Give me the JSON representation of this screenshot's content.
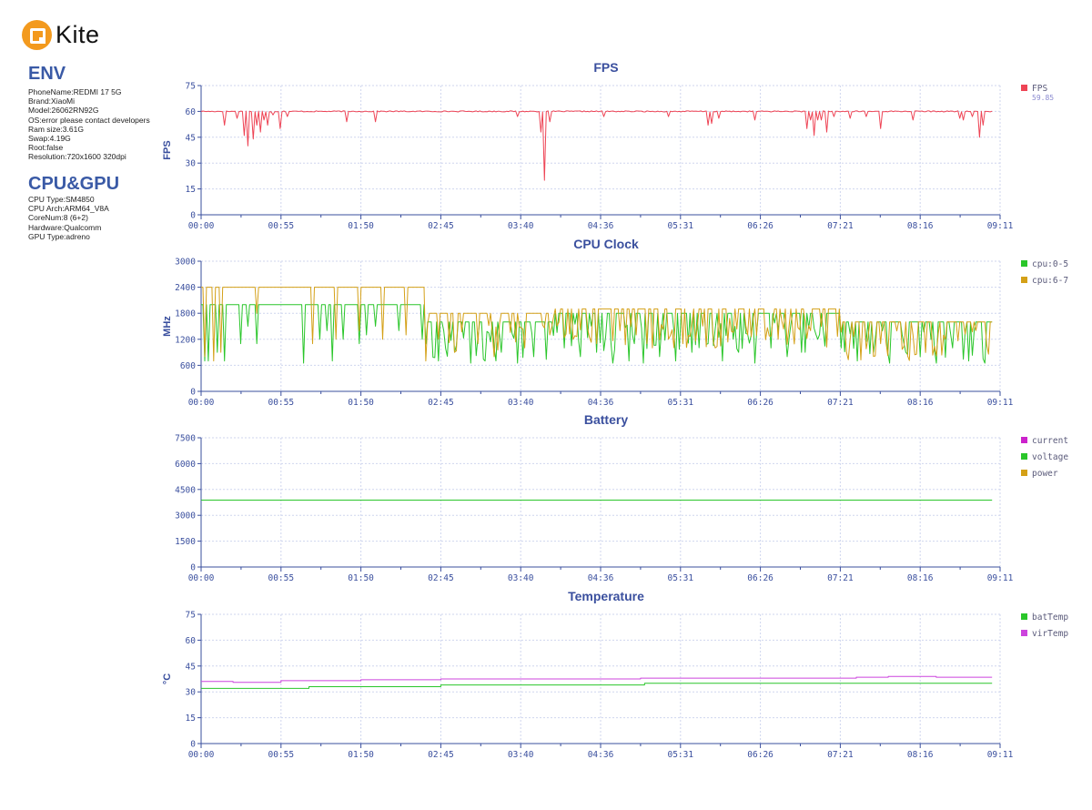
{
  "app": {
    "name": "Kite"
  },
  "env": {
    "title": "ENV",
    "items": [
      "PhoneName:REDMI 17 5G",
      "Brand:XiaoMi",
      "Model:26062RN92G",
      "OS:error please contact developers",
      "Ram size:3.61G",
      "Swap:4.19G",
      "Root:false",
      "Resolution:720x1600 320dpi"
    ]
  },
  "cpugpu": {
    "title": "CPU&GPU",
    "items": [
      "CPU Type:SM4850",
      "CPU Arch:ARM64_V8A",
      "CoreNum:8 (6+2)",
      "Hardware:Qualcomm",
      "GPU Type:adreno"
    ]
  },
  "chart_data": [
    {
      "type": "line",
      "title": "FPS",
      "ylabel": "FPS",
      "ylim": [
        0,
        75
      ],
      "yticks": [
        "0",
        "15",
        "30",
        "45",
        "60",
        "75"
      ],
      "xticks": [
        "00:00",
        "00:55",
        "01:50",
        "02:45",
        "03:40",
        "04:36",
        "05:31",
        "06:26",
        "07:21",
        "08:16",
        "09:11"
      ],
      "grid": true,
      "legend_position": "right",
      "series": [
        {
          "name": "FPS",
          "color": "#ee4455",
          "legend_value": "59.85",
          "base": 60,
          "dips": [
            [
              0.03,
              52
            ],
            [
              0.045,
              56
            ],
            [
              0.055,
              46
            ],
            [
              0.06,
              40
            ],
            [
              0.065,
              44
            ],
            [
              0.07,
              52
            ],
            [
              0.075,
              48
            ],
            [
              0.08,
              55
            ],
            [
              0.085,
              52
            ],
            [
              0.09,
              58
            ],
            [
              0.1,
              50
            ],
            [
              0.11,
              57
            ],
            [
              0.185,
              54
            ],
            [
              0.22,
              54
            ],
            [
              0.4,
              57
            ],
            [
              0.43,
              48
            ],
            [
              0.435,
              20
            ],
            [
              0.44,
              54
            ],
            [
              0.51,
              57
            ],
            [
              0.59,
              57
            ],
            [
              0.655,
              56
            ],
            [
              0.7,
              55
            ],
            [
              0.77,
              57
            ],
            [
              0.8,
              57
            ],
            [
              0.82,
              57
            ],
            [
              0.77,
              56
            ],
            [
              0.785,
              55
            ],
            [
              0.64,
              52
            ],
            [
              0.645,
              53
            ],
            [
              0.77,
              55
            ],
            [
              0.79,
              52
            ],
            [
              0.79,
              48
            ],
            [
              0.82,
              56
            ],
            [
              0.9,
              55
            ],
            [
              0.86,
              50
            ],
            [
              0.84,
              57
            ],
            [
              0.765,
              50
            ],
            [
              0.775,
              46
            ],
            [
              0.78,
              55
            ],
            [
              0.655,
              56
            ],
            [
              0.96,
              56
            ],
            [
              0.964,
              55
            ],
            [
              0.983,
              45
            ],
            [
              0.988,
              52
            ],
            [
              0.975,
              57
            ]
          ]
        }
      ]
    },
    {
      "type": "line",
      "title": "CPU Clock",
      "ylabel": "MHz",
      "ylim": [
        0,
        3000
      ],
      "yticks": [
        "0",
        "600",
        "1200",
        "1800",
        "2400",
        "3000"
      ],
      "xticks": [
        "00:00",
        "00:55",
        "01:50",
        "02:45",
        "03:40",
        "04:36",
        "05:31",
        "06:26",
        "07:21",
        "08:16",
        "09:11"
      ],
      "grid": true,
      "legend_position": "right",
      "series": [
        {
          "name": "cpu:0-5",
          "color": "#2ac62a",
          "segments": [
            [
              0,
              0.04,
              2000
            ],
            [
              0.04,
              0.28,
              2000
            ],
            [
              0.28,
              0.44,
              1600
            ],
            [
              0.44,
              0.8,
              1800
            ],
            [
              0.8,
              0.99,
              1600
            ]
          ],
          "drops": [
            [
              0.005,
              700
            ],
            [
              0.01,
              700
            ],
            [
              0.02,
              900
            ],
            [
              0.03,
              700
            ],
            [
              0.05,
              1100
            ],
            [
              0.06,
              1500
            ],
            [
              0.07,
              1100
            ],
            [
              0.13,
              650
            ],
            [
              0.15,
              1200
            ],
            [
              0.16,
              1400
            ],
            [
              0.165,
              700
            ],
            [
              0.18,
              1200
            ],
            [
              0.2,
              1100
            ],
            [
              0.21,
              1300
            ],
            [
              0.22,
              1500
            ],
            [
              0.25,
              1400
            ],
            [
              0.28,
              1200
            ],
            [
              0.3,
              700
            ],
            [
              0.32,
              900
            ],
            [
              0.34,
              650
            ],
            [
              0.36,
              700
            ],
            [
              0.38,
              900
            ],
            [
              0.4,
              650
            ],
            [
              0.42,
              800
            ],
            [
              0.46,
              1000
            ],
            [
              0.48,
              800
            ],
            [
              0.5,
              900
            ],
            [
              0.52,
              650
            ],
            [
              0.54,
              700
            ],
            [
              0.56,
              650
            ],
            [
              0.58,
              800
            ],
            [
              0.6,
              700
            ],
            [
              0.62,
              900
            ],
            [
              0.64,
              1100
            ],
            [
              0.66,
              700
            ],
            [
              0.68,
              900
            ],
            [
              0.7,
              650
            ],
            [
              0.72,
              1000
            ],
            [
              0.74,
              800
            ],
            [
              0.76,
              900
            ],
            [
              0.78,
              1200
            ],
            [
              0.81,
              1000
            ],
            [
              0.83,
              700
            ],
            [
              0.85,
              900
            ],
            [
              0.87,
              650
            ],
            [
              0.89,
              900
            ],
            [
              0.91,
              800
            ],
            [
              0.93,
              650
            ],
            [
              0.95,
              1000
            ],
            [
              0.97,
              700
            ],
            [
              0.99,
              650
            ]
          ]
        },
        {
          "name": "cpu:6-7",
          "color": "#d4a017",
          "segments": [
            [
              0,
              0.03,
              2400
            ],
            [
              0.03,
              0.28,
              2400
            ],
            [
              0.28,
              0.44,
              1800
            ],
            [
              0.44,
              0.8,
              1900
            ],
            [
              0.8,
              0.99,
              1600
            ]
          ],
          "drops": [
            [
              0.005,
              800
            ],
            [
              0.015,
              700
            ],
            [
              0.025,
              900
            ],
            [
              0.07,
              1800
            ],
            [
              0.14,
              1100
            ],
            [
              0.17,
              1200
            ],
            [
              0.2,
              1400
            ],
            [
              0.23,
              1200
            ],
            [
              0.26,
              1300
            ],
            [
              0.285,
              700
            ],
            [
              0.3,
              1200
            ],
            [
              0.32,
              900
            ],
            [
              0.35,
              1100
            ],
            [
              0.37,
              800
            ],
            [
              0.41,
              1000
            ],
            [
              0.44,
              1300
            ],
            [
              0.47,
              1200
            ],
            [
              0.5,
              1100
            ],
            [
              0.53,
              1400
            ],
            [
              0.55,
              1300
            ],
            [
              0.59,
              1200
            ],
            [
              0.61,
              1100
            ],
            [
              0.65,
              1000
            ],
            [
              0.69,
              1300
            ],
            [
              0.73,
              1200
            ],
            [
              0.77,
              1400
            ],
            [
              0.82,
              1200
            ],
            [
              0.86,
              1100
            ],
            [
              0.9,
              1300
            ],
            [
              0.94,
              1200
            ],
            [
              0.98,
              1400
            ]
          ]
        }
      ]
    },
    {
      "type": "line",
      "title": "Battery",
      "ylabel": "",
      "ylim": [
        0,
        7500
      ],
      "yticks": [
        "0",
        "1500",
        "3000",
        "4500",
        "6000",
        "7500"
      ],
      "xticks": [
        "00:00",
        "00:55",
        "01:50",
        "02:45",
        "03:40",
        "04:36",
        "05:31",
        "06:26",
        "07:21",
        "08:16",
        "09:11"
      ],
      "grid": true,
      "legend_position": "right",
      "series": [
        {
          "name": "current",
          "color": "#cc22cc"
        },
        {
          "name": "voltage",
          "color": "#2ac62a",
          "constant": 3880
        },
        {
          "name": "power",
          "color": "#d4a017"
        }
      ]
    },
    {
      "type": "line",
      "title": "Temperature",
      "ylabel": "°C",
      "ylim": [
        0,
        75
      ],
      "yticks": [
        "0",
        "15",
        "30",
        "45",
        "60",
        "75"
      ],
      "xticks": [
        "00:00",
        "00:55",
        "01:50",
        "02:45",
        "03:40",
        "04:36",
        "05:31",
        "06:26",
        "07:21",
        "08:16",
        "09:11"
      ],
      "grid": true,
      "legend_position": "right",
      "series": [
        {
          "name": "batTemp",
          "color": "#2ac62a",
          "steps": [
            [
              0.0,
              32
            ],
            [
              0.135,
              33
            ],
            [
              0.3,
              34
            ],
            [
              0.555,
              35
            ],
            [
              0.99,
              35
            ]
          ]
        },
        {
          "name": "virTemp",
          "color": "#cc44dd",
          "steps": [
            [
              0.0,
              36
            ],
            [
              0.04,
              35.5
            ],
            [
              0.1,
              36.5
            ],
            [
              0.2,
              37
            ],
            [
              0.3,
              37.5
            ],
            [
              0.45,
              37.5
            ],
            [
              0.55,
              38
            ],
            [
              0.7,
              38
            ],
            [
              0.82,
              38.5
            ],
            [
              0.86,
              39
            ],
            [
              0.92,
              38.5
            ],
            [
              0.99,
              38.5
            ]
          ]
        }
      ]
    }
  ]
}
